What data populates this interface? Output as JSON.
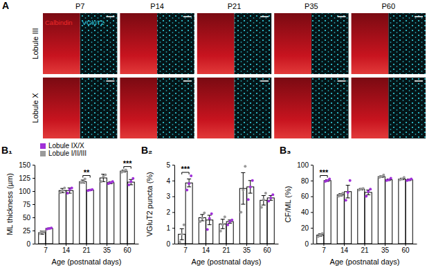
{
  "panel_a": {
    "label": "A",
    "channels": [
      {
        "text": "Calbindin",
        "color": "#ee2a2a"
      },
      {
        "text": "VGluT2",
        "color": "#35d6e6"
      }
    ],
    "ages": [
      "P7",
      "P14",
      "P21",
      "P35",
      "P60"
    ],
    "rows": [
      "Lobule III",
      "Lobule X"
    ]
  },
  "chart_data": [
    {
      "type": "bar",
      "panel": "B₁",
      "y_label": "ML thickness (µm)",
      "x_label": "Age (postnatal days)",
      "categories": [
        7,
        14,
        21,
        35,
        60
      ],
      "series": [
        {
          "name": "Lobule I/II/III",
          "color": "#9a9a9a",
          "values": [
            21,
            101,
            118,
            125,
            138
          ],
          "errors": [
            3,
            4,
            3,
            7,
            2
          ],
          "points": [
            [
              19,
              22,
              23
            ],
            [
              97,
              101,
              106
            ],
            [
              116,
              117,
              123
            ],
            [
              118,
              128,
              131
            ],
            [
              136,
              138,
              140
            ]
          ]
        },
        {
          "name": "Lobule IX/X",
          "color": "#a030d8",
          "values": [
            29,
            101,
            102,
            116,
            117
          ],
          "errors": [
            1,
            5,
            1,
            2,
            5
          ],
          "points": [
            [
              28,
              29,
              30
            ],
            [
              96,
              103,
              106
            ],
            [
              101,
              102,
              103
            ],
            [
              114,
              116,
              118
            ],
            [
              112,
              118,
              124
            ]
          ]
        }
      ],
      "ylim": [
        0,
        150
      ],
      "yticks": [
        0,
        25,
        50,
        75,
        100,
        125,
        150
      ],
      "legend": "upper left",
      "annotations": [
        {
          "text": "**",
          "category": 21
        },
        {
          "text": "***",
          "category": 60
        }
      ]
    },
    {
      "type": "bar",
      "panel": "B₂",
      "y_label": "VGluT2 puncta (%)",
      "x_label": "Age (postnatal days)",
      "categories": [
        7,
        14,
        21,
        35,
        60
      ],
      "series": [
        {
          "color": "#9a9a9a",
          "values": [
            0.6,
            1.65,
            1.25,
            3.5,
            2.75
          ],
          "errors": [
            0.35,
            0.2,
            0.3,
            1.0,
            0.3
          ],
          "points": [
            [
              0.1,
              0.6,
              1.2
            ],
            [
              1.4,
              1.6,
              1.95
            ],
            [
              0.8,
              1.2,
              1.7
            ],
            [
              2.0,
              3.4,
              4.9
            ],
            [
              2.3,
              2.8,
              3.2
            ]
          ]
        },
        {
          "color": "#a030d8",
          "values": [
            3.85,
            1.5,
            1.4,
            3.6,
            2.9
          ],
          "errors": [
            0.25,
            0.3,
            0.1,
            0.4,
            0.15
          ],
          "points": [
            [
              3.4,
              3.8,
              4.3
            ],
            [
              0.9,
              1.6,
              1.9
            ],
            [
              1.2,
              1.4,
              1.5
            ],
            [
              2.8,
              3.6,
              4.0
            ],
            [
              2.7,
              2.9,
              3.1
            ]
          ]
        }
      ],
      "ylim": [
        0,
        5
      ],
      "yticks": [
        0,
        1,
        2,
        3,
        4,
        5
      ],
      "annotations": [
        {
          "text": "***",
          "category": 7
        }
      ]
    },
    {
      "type": "bar",
      "panel": "B₃",
      "y_label": "CF/ML (%)",
      "x_label": "Age (postnatal days)",
      "categories": [
        7,
        14,
        21,
        35,
        60
      ],
      "series": [
        {
          "color": "#9a9a9a",
          "values": [
            11,
            62,
            69,
            85,
            82
          ],
          "errors": [
            1.5,
            1.5,
            1,
            1,
            1
          ],
          "points": [
            [
              9,
              11,
              13
            ],
            [
              60,
              62,
              64
            ],
            [
              68,
              69,
              70
            ],
            [
              84,
              85,
              87
            ],
            [
              81,
              82,
              84
            ]
          ]
        },
        {
          "color": "#a030d8",
          "values": [
            80,
            66,
            65,
            81,
            81
          ],
          "errors": [
            1,
            8,
            3,
            1,
            1
          ],
          "points": [
            [
              79,
              80,
              82
            ],
            [
              55,
              65,
              80
            ],
            [
              60,
              66,
              69
            ],
            [
              80,
              81,
              83
            ],
            [
              80,
              81,
              82
            ]
          ]
        }
      ],
      "ylim": [
        0,
        100
      ],
      "yticks": [
        0,
        20,
        40,
        60,
        80,
        100
      ],
      "annotations": [
        {
          "text": "***",
          "category": 7
        }
      ]
    }
  ]
}
